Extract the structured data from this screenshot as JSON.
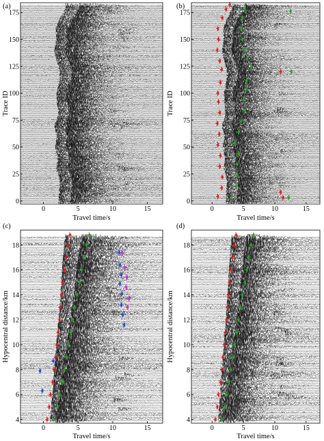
{
  "chart_data": [
    {
      "type": "seismogram-section",
      "panel_label": "(a)",
      "xlabel": "Travel time/s",
      "ylabel": "Trace ID",
      "xlim": [
        -3.3,
        17.2
      ],
      "ylim": [
        -3,
        184
      ],
      "x_ticks": [
        0,
        5,
        10,
        15
      ],
      "y_ticks": [
        0,
        25,
        50,
        75,
        100,
        125,
        150,
        175
      ],
      "show_y_tick_labels": true,
      "trace_count": 184,
      "trace_spacing": 1,
      "onsets": [
        {
          "y": 0,
          "p": 2.2,
          "s": 3.9
        },
        {
          "y": 10,
          "p": 2.3,
          "s": 4.1
        },
        {
          "y": 20,
          "p": 2.4,
          "s": 4.2
        },
        {
          "y": 30,
          "p": 1.9,
          "s": 3.6
        },
        {
          "y": 40,
          "p": 2.1,
          "s": 3.8
        },
        {
          "y": 50,
          "p": 1.7,
          "s": 3.2
        },
        {
          "y": 60,
          "p": 2.0,
          "s": 3.5
        },
        {
          "y": 70,
          "p": 1.6,
          "s": 3.0
        },
        {
          "y": 80,
          "p": 2.2,
          "s": 3.8
        },
        {
          "y": 90,
          "p": 2.0,
          "s": 3.5
        },
        {
          "y": 100,
          "p": 1.9,
          "s": 3.2
        },
        {
          "y": 110,
          "p": 2.3,
          "s": 3.9
        },
        {
          "y": 120,
          "p": 2.4,
          "s": 4.2
        },
        {
          "y": 130,
          "p": 2.0,
          "s": 3.7
        },
        {
          "y": 140,
          "p": 1.6,
          "s": 3.0
        },
        {
          "y": 150,
          "p": 1.9,
          "s": 3.4
        },
        {
          "y": 160,
          "p": 1.8,
          "s": 3.3
        },
        {
          "y": 170,
          "p": 2.5,
          "s": 4.3
        },
        {
          "y": 178,
          "p": 3.2,
          "s": 5.2
        }
      ],
      "picks": []
    },
    {
      "type": "seismogram-section",
      "panel_label": "(b)",
      "xlabel": "Travel time/s",
      "ylabel": "Trace ID",
      "xlim": [
        -3.3,
        17.2
      ],
      "ylim": [
        -3,
        184
      ],
      "x_ticks": [
        0,
        5,
        10,
        15
      ],
      "y_ticks": [
        0,
        25,
        50,
        75,
        100,
        125,
        150,
        175
      ],
      "show_y_tick_labels": true,
      "trace_count": 184,
      "trace_spacing": 1,
      "onsets": [
        {
          "y": 0,
          "p": 2.2,
          "s": 3.9
        },
        {
          "y": 10,
          "p": 2.3,
          "s": 4.1
        },
        {
          "y": 20,
          "p": 2.4,
          "s": 4.2
        },
        {
          "y": 30,
          "p": 1.9,
          "s": 3.6
        },
        {
          "y": 40,
          "p": 2.1,
          "s": 3.8
        },
        {
          "y": 50,
          "p": 1.7,
          "s": 3.2
        },
        {
          "y": 60,
          "p": 2.0,
          "s": 3.5
        },
        {
          "y": 70,
          "p": 1.6,
          "s": 3.0
        },
        {
          "y": 80,
          "p": 2.2,
          "s": 3.8
        },
        {
          "y": 90,
          "p": 2.0,
          "s": 3.5
        },
        {
          "y": 100,
          "p": 1.9,
          "s": 3.2
        },
        {
          "y": 110,
          "p": 2.3,
          "s": 3.9
        },
        {
          "y": 120,
          "p": 2.4,
          "s": 4.2
        },
        {
          "y": 130,
          "p": 2.0,
          "s": 3.7
        },
        {
          "y": 140,
          "p": 1.6,
          "s": 3.0
        },
        {
          "y": 150,
          "p": 1.9,
          "s": 3.4
        },
        {
          "y": 160,
          "p": 1.8,
          "s": 3.3
        },
        {
          "y": 170,
          "p": 2.5,
          "s": 4.3
        },
        {
          "y": 178,
          "p": 3.2,
          "s": 5.2
        }
      ],
      "picks": [
        {
          "phase": "P",
          "color": "#e41a1c",
          "points": [
            [
              0.9,
              4
            ],
            [
              1.5,
              12
            ],
            [
              1.6,
              22
            ],
            [
              1.2,
              32
            ],
            [
              1.3,
              42
            ],
            [
              0.9,
              52
            ],
            [
              1.1,
              62
            ],
            [
              0.8,
              72
            ],
            [
              1.2,
              82
            ],
            [
              1.0,
              92
            ],
            [
              0.9,
              100
            ],
            [
              1.3,
              110
            ],
            [
              1.5,
              122
            ],
            [
              1.2,
              130
            ],
            [
              0.8,
              140
            ],
            [
              1.0,
              150
            ],
            [
              0.9,
              160
            ],
            [
              1.6,
              170
            ],
            [
              2.2,
              178
            ],
            [
              2.8,
              182
            ],
            [
              10.9,
              8
            ],
            [
              11.3,
              3
            ],
            [
              10.9,
              120
            ]
          ]
        },
        {
          "phase": "S",
          "color": "#2ca02c",
          "points": [
            [
              3.1,
              4
            ],
            [
              3.8,
              14
            ],
            [
              4.0,
              24
            ],
            [
              4.0,
              34
            ],
            [
              4.2,
              44
            ],
            [
              3.6,
              54
            ],
            [
              4.2,
              64
            ],
            [
              4.6,
              74
            ],
            [
              5.2,
              84
            ],
            [
              5.0,
              94
            ],
            [
              5.4,
              104
            ],
            [
              5.5,
              112
            ],
            [
              6.2,
              124
            ],
            [
              5.6,
              132
            ],
            [
              5.2,
              140
            ],
            [
              4.8,
              150
            ],
            [
              4.6,
              160
            ],
            [
              4.8,
              170
            ],
            [
              5.2,
              178
            ],
            [
              12.2,
              3
            ],
            [
              12.6,
              120
            ],
            [
              12.5,
              176
            ]
          ]
        }
      ]
    },
    {
      "type": "seismogram-section",
      "panel_label": "(c)",
      "xlabel": "Travel time/s",
      "ylabel": "Hypocentral distance/km",
      "xlim": [
        -3.3,
        17.2
      ],
      "ylim": [
        3.7,
        19.2
      ],
      "x_ticks": [
        0,
        5,
        10,
        15
      ],
      "y_ticks": [
        4,
        6,
        8,
        10,
        12,
        14,
        16,
        18
      ],
      "show_y_tick_labels": true,
      "trace_count": 110,
      "trace_spacing": 0.135,
      "onsets": [
        {
          "y": 4.0,
          "p": 1.0,
          "s": 1.7
        },
        {
          "y": 6.0,
          "p": 1.3,
          "s": 2.3
        },
        {
          "y": 8.0,
          "p": 1.6,
          "s": 2.8
        },
        {
          "y": 10.0,
          "p": 1.9,
          "s": 3.4
        },
        {
          "y": 12.0,
          "p": 2.2,
          "s": 3.9
        },
        {
          "y": 14.0,
          "p": 2.5,
          "s": 4.4
        },
        {
          "y": 16.0,
          "p": 2.7,
          "s": 4.8
        },
        {
          "y": 18.0,
          "p": 3.0,
          "s": 5.3
        },
        {
          "y": 18.8,
          "p": 3.2,
          "s": 5.6
        }
      ],
      "picks": [
        {
          "phase": "P",
          "color": "#e41a1c",
          "points": [
            [
              0.5,
              4.0
            ],
            [
              0.8,
              5.0
            ],
            [
              1.0,
              6.0
            ],
            [
              1.3,
              7.0
            ],
            [
              1.5,
              8.0
            ],
            [
              1.7,
              9.0
            ],
            [
              1.9,
              10.0
            ],
            [
              2.1,
              11.0
            ],
            [
              2.3,
              12.0
            ],
            [
              2.4,
              13.0
            ],
            [
              2.6,
              14.0
            ],
            [
              2.8,
              15.0
            ],
            [
              3.0,
              16.0
            ],
            [
              3.2,
              17.0
            ],
            [
              3.5,
              18.0
            ],
            [
              3.8,
              18.8
            ]
          ]
        },
        {
          "phase": "S",
          "color": "#2ca02c",
          "points": [
            [
              1.5,
              4.0
            ],
            [
              2.0,
              5.0
            ],
            [
              2.3,
              6.0
            ],
            [
              2.7,
              7.0
            ],
            [
              3.0,
              8.0
            ],
            [
              3.3,
              9.0
            ],
            [
              3.6,
              10.0
            ],
            [
              3.9,
              11.0
            ],
            [
              4.2,
              12.0
            ],
            [
              4.5,
              13.0
            ],
            [
              4.8,
              14.0
            ],
            [
              5.2,
              15.0
            ],
            [
              5.5,
              16.0
            ],
            [
              5.8,
              17.0
            ],
            [
              6.2,
              18.0
            ],
            [
              6.6,
              18.8
            ]
          ]
        },
        {
          "phase": "P",
          "color": "#1f4fd8",
          "points": [
            [
              -0.2,
              6.3
            ],
            [
              -0.5,
              7.9
            ],
            [
              1.4,
              8.7
            ],
            [
              10.9,
              17.4
            ],
            [
              11.0,
              16.4
            ],
            [
              11.2,
              15.6
            ],
            [
              11.0,
              14.9
            ],
            [
              11.3,
              14.1
            ],
            [
              11.2,
              13.2
            ],
            [
              11.4,
              12.4
            ],
            [
              11.6,
              11.6
            ]
          ]
        },
        {
          "phase": "S",
          "color": "#d12ad1",
          "points": [
            [
              11.3,
              17.4
            ],
            [
              11.7,
              16.2
            ],
            [
              12.0,
              15.4
            ],
            [
              11.9,
              14.6
            ],
            [
              12.3,
              13.7
            ],
            [
              12.1,
              13.0
            ]
          ]
        }
      ]
    },
    {
      "type": "seismogram-section",
      "panel_label": "(d)",
      "xlabel": "Travel time/s",
      "ylabel": "Hypocentral distance/km",
      "xlim": [
        -3.3,
        17.2
      ],
      "ylim": [
        3.7,
        19.2
      ],
      "x_ticks": [
        0,
        5,
        10,
        15
      ],
      "y_ticks": [
        4,
        6,
        8,
        10,
        12,
        14,
        16,
        18
      ],
      "show_y_tick_labels": true,
      "trace_count": 110,
      "trace_spacing": 0.135,
      "onsets": [
        {
          "y": 4.0,
          "p": 1.0,
          "s": 1.7
        },
        {
          "y": 6.0,
          "p": 1.3,
          "s": 2.3
        },
        {
          "y": 8.0,
          "p": 1.6,
          "s": 2.8
        },
        {
          "y": 10.0,
          "p": 1.9,
          "s": 3.4
        },
        {
          "y": 12.0,
          "p": 2.2,
          "s": 3.9
        },
        {
          "y": 14.0,
          "p": 2.5,
          "s": 4.4
        },
        {
          "y": 16.0,
          "p": 2.7,
          "s": 4.8
        },
        {
          "y": 18.0,
          "p": 3.0,
          "s": 5.3
        },
        {
          "y": 18.8,
          "p": 3.2,
          "s": 5.6
        }
      ],
      "picks": [
        {
          "phase": "P",
          "color": "#e41a1c",
          "points": [
            [
              0.5,
              4.0
            ],
            [
              0.8,
              5.0
            ],
            [
              1.0,
              6.0
            ],
            [
              1.3,
              7.0
            ],
            [
              1.5,
              8.0
            ],
            [
              1.7,
              9.0
            ],
            [
              1.9,
              10.0
            ],
            [
              2.1,
              11.0
            ],
            [
              2.3,
              12.0
            ],
            [
              2.4,
              13.0
            ],
            [
              2.6,
              14.0
            ],
            [
              2.8,
              15.0
            ],
            [
              3.0,
              16.0
            ],
            [
              3.2,
              17.0
            ],
            [
              3.5,
              18.0
            ],
            [
              3.8,
              18.8
            ]
          ]
        },
        {
          "phase": "S",
          "color": "#2ca02c",
          "points": [
            [
              1.5,
              4.0
            ],
            [
              2.0,
              5.0
            ],
            [
              2.3,
              6.0
            ],
            [
              2.7,
              7.0
            ],
            [
              3.0,
              8.0
            ],
            [
              3.3,
              9.0
            ],
            [
              3.6,
              10.0
            ],
            [
              3.9,
              11.0
            ],
            [
              4.2,
              12.0
            ],
            [
              4.5,
              13.0
            ],
            [
              4.8,
              14.0
            ],
            [
              5.2,
              15.0
            ],
            [
              5.5,
              16.0
            ],
            [
              5.8,
              17.0
            ],
            [
              6.2,
              18.0
            ],
            [
              6.6,
              18.8
            ]
          ]
        }
      ]
    }
  ]
}
